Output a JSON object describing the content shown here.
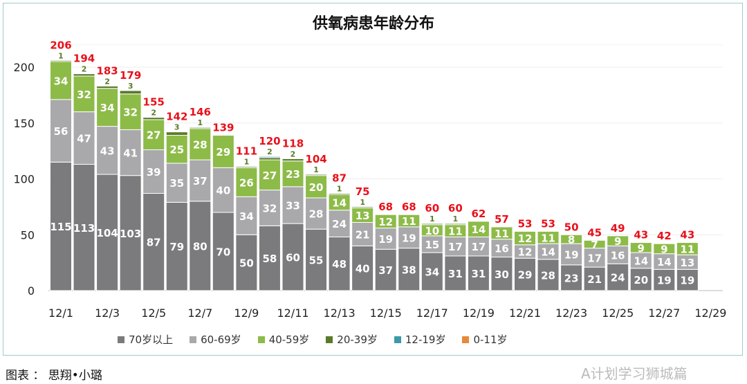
{
  "chart_data": {
    "type": "bar",
    "stacked": true,
    "title": "供氧病患年龄分布",
    "categories": [
      "12/1",
      "12/2",
      "12/3",
      "12/4",
      "12/5",
      "12/6",
      "12/7",
      "12/8",
      "12/9",
      "12/10",
      "12/11",
      "12/12",
      "12/13",
      "12/14",
      "12/15",
      "12/16",
      "12/17",
      "12/18",
      "12/19",
      "12/20",
      "12/21",
      "12/22",
      "12/23",
      "12/24",
      "12/25",
      "12/26",
      "12/27",
      "12/28"
    ],
    "xtick_labels": [
      "12/1",
      "12/3",
      "12/5",
      "12/7",
      "12/9",
      "12/11",
      "12/13",
      "12/15",
      "12/17",
      "12/19",
      "12/21",
      "12/23",
      "12/25",
      "12/27",
      "12/29"
    ],
    "ylim": [
      0,
      220
    ],
    "yticks": [
      0,
      50,
      100,
      150,
      200
    ],
    "grid": true,
    "legend_position": "bottom",
    "series": [
      {
        "name": "70岁以上",
        "color": "#7b7a7d",
        "values": [
          115,
          113,
          104,
          103,
          87,
          79,
          80,
          70,
          50,
          58,
          60,
          55,
          48,
          40,
          37,
          38,
          34,
          31,
          31,
          30,
          29,
          28,
          23,
          21,
          24,
          20,
          19,
          19
        ]
      },
      {
        "name": "60-69岁",
        "color": "#a9a8ab",
        "values": [
          56,
          47,
          43,
          41,
          39,
          35,
          37,
          40,
          34,
          32,
          33,
          28,
          24,
          21,
          19,
          19,
          15,
          17,
          17,
          16,
          12,
          14,
          19,
          17,
          16,
          14,
          14,
          13
        ]
      },
      {
        "name": "40-59岁",
        "color": "#8dbb48",
        "values": [
          34,
          32,
          34,
          32,
          27,
          25,
          28,
          29,
          26,
          27,
          23,
          20,
          14,
          13,
          12,
          11,
          10,
          11,
          14,
          11,
          12,
          11,
          8,
          7,
          9,
          9,
          9,
          11
        ]
      },
      {
        "name": "20-39岁",
        "color": "#5a7a2a",
        "values": [
          1,
          2,
          2,
          3,
          2,
          3,
          1,
          0,
          1,
          2,
          2,
          1,
          1,
          1,
          0,
          0,
          1,
          1,
          0,
          0,
          0,
          0,
          0,
          0,
          0,
          0,
          0,
          0
        ]
      },
      {
        "name": "12-19岁",
        "color": "#3a9aa8",
        "values": [
          0,
          0,
          0,
          0,
          0,
          0,
          0,
          0,
          0,
          1,
          0,
          0,
          0,
          0,
          0,
          0,
          0,
          0,
          0,
          0,
          0,
          0,
          0,
          0,
          0,
          0,
          0,
          0
        ]
      },
      {
        "name": "0-11岁",
        "color": "#e8893a",
        "values": [
          0,
          0,
          0,
          0,
          0,
          0,
          0,
          0,
          0,
          0,
          0,
          0,
          0,
          0,
          0,
          0,
          0,
          0,
          0,
          0,
          0,
          0,
          0,
          0,
          0,
          0,
          0,
          0
        ]
      }
    ],
    "totals": [
      206,
      194,
      183,
      179,
      155,
      142,
      146,
      139,
      111,
      120,
      118,
      104,
      87,
      75,
      68,
      68,
      60,
      60,
      62,
      57,
      53,
      53,
      50,
      45,
      49,
      43,
      42,
      43
    ],
    "total_label_color": "#e8101a"
  },
  "footer": "图表 ： 思翔•小璐",
  "watermark": "A计划学习狮城篇"
}
